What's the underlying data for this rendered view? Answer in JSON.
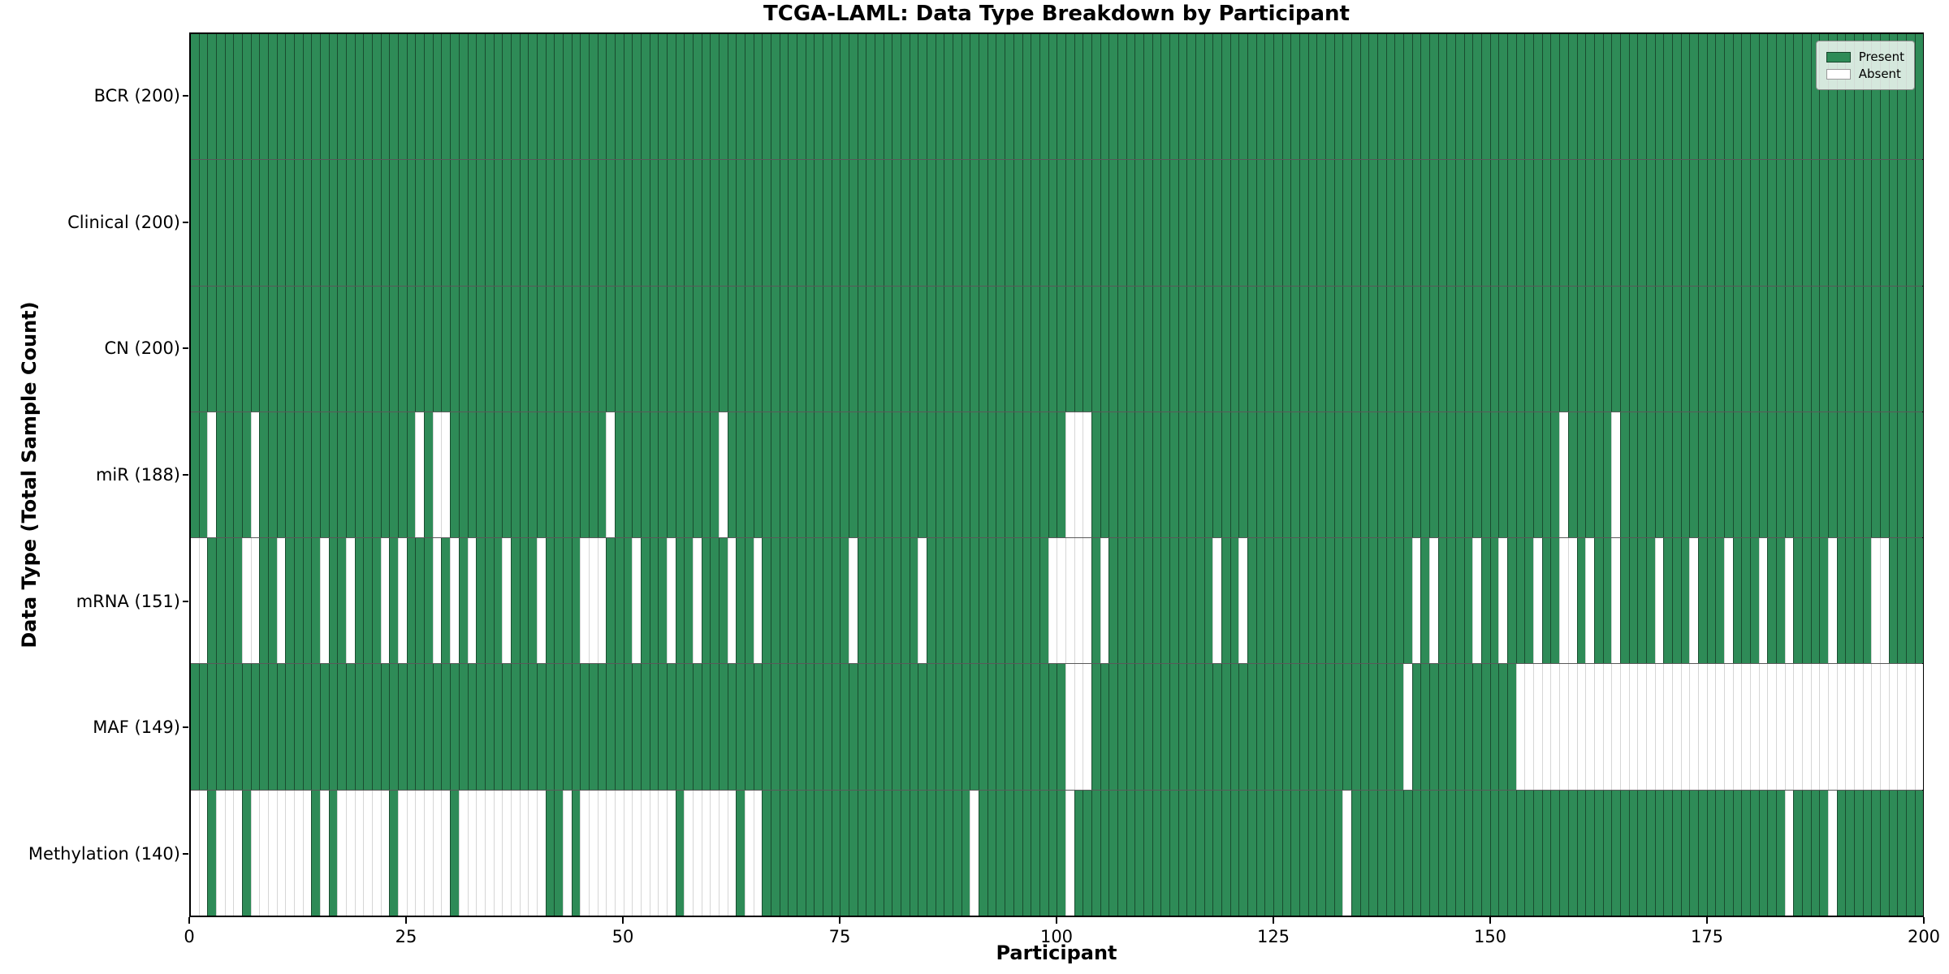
{
  "title": "TCGA-LAML: Data Type Breakdown by Participant",
  "axes": {
    "x_label": "Participant",
    "y_label": "Data Type (Total Sample Count)",
    "x_ticks": [
      0,
      25,
      50,
      75,
      100,
      125,
      150,
      175,
      200
    ]
  },
  "legend": {
    "items": [
      {
        "label": "Present",
        "color": "#2e8b57"
      },
      {
        "label": "Absent",
        "color": "#ffffff"
      }
    ]
  },
  "colors": {
    "present": "#2e8b57",
    "absent": "#ffffff",
    "frame": "#000000"
  },
  "chart_data": {
    "type": "heatmap",
    "title": "TCGA-LAML: Data Type Breakdown by Participant",
    "xlabel": "Participant",
    "ylabel": "Data Type (Total Sample Count)",
    "x_range": [
      0,
      200
    ],
    "n_participants": 200,
    "cell_states": [
      "present",
      "absent"
    ],
    "rows": [
      {
        "name": "BCR",
        "label": "BCR (200)",
        "present_total": 200,
        "absent_participants": []
      },
      {
        "name": "Clinical",
        "label": "Clinical (200)",
        "present_total": 200,
        "absent_participants": []
      },
      {
        "name": "CN",
        "label": "CN (200)",
        "present_total": 200,
        "absent_participants": []
      },
      {
        "name": "miR",
        "label": "miR (188)",
        "present_total": 188,
        "absent_participants": [
          2,
          7,
          26,
          28,
          29,
          48,
          61,
          101,
          102,
          103,
          158,
          164
        ]
      },
      {
        "name": "mRNA",
        "label": "mRNA (151)",
        "present_total": 151,
        "absent_participants": [
          0,
          1,
          6,
          7,
          10,
          15,
          18,
          22,
          24,
          28,
          30,
          32,
          36,
          40,
          45,
          46,
          47,
          51,
          55,
          58,
          62,
          65,
          76,
          84,
          99,
          100,
          101,
          102,
          103,
          105,
          118,
          121,
          141,
          143,
          148,
          151,
          155,
          158,
          159,
          161,
          164,
          169,
          173,
          177,
          181,
          184,
          189,
          194,
          195
        ]
      },
      {
        "name": "MAF",
        "label": "MAF (149)",
        "present_total": 149,
        "absent_participants": [
          101,
          102,
          103,
          140,
          153,
          154,
          155,
          156,
          157,
          158,
          159,
          160,
          161,
          162,
          163,
          164,
          165,
          166,
          167,
          168,
          169,
          170,
          171,
          172,
          173,
          174,
          175,
          176,
          177,
          178,
          179,
          180,
          181,
          182,
          183,
          184,
          185,
          186,
          187,
          188,
          189,
          190,
          191,
          192,
          193,
          194,
          195,
          196,
          197,
          198,
          199
        ]
      },
      {
        "name": "Methylation",
        "label": "Methylation (140)",
        "present_total": 140,
        "absent_participants": [
          0,
          1,
          3,
          4,
          5,
          7,
          8,
          9,
          10,
          11,
          12,
          13,
          15,
          17,
          18,
          19,
          20,
          21,
          22,
          24,
          25,
          26,
          27,
          28,
          29,
          31,
          32,
          33,
          34,
          35,
          36,
          37,
          38,
          39,
          40,
          43,
          45,
          46,
          47,
          48,
          49,
          50,
          51,
          52,
          53,
          54,
          55,
          57,
          58,
          59,
          60,
          61,
          62,
          64,
          65,
          90,
          101,
          133,
          184,
          189
        ]
      }
    ]
  }
}
